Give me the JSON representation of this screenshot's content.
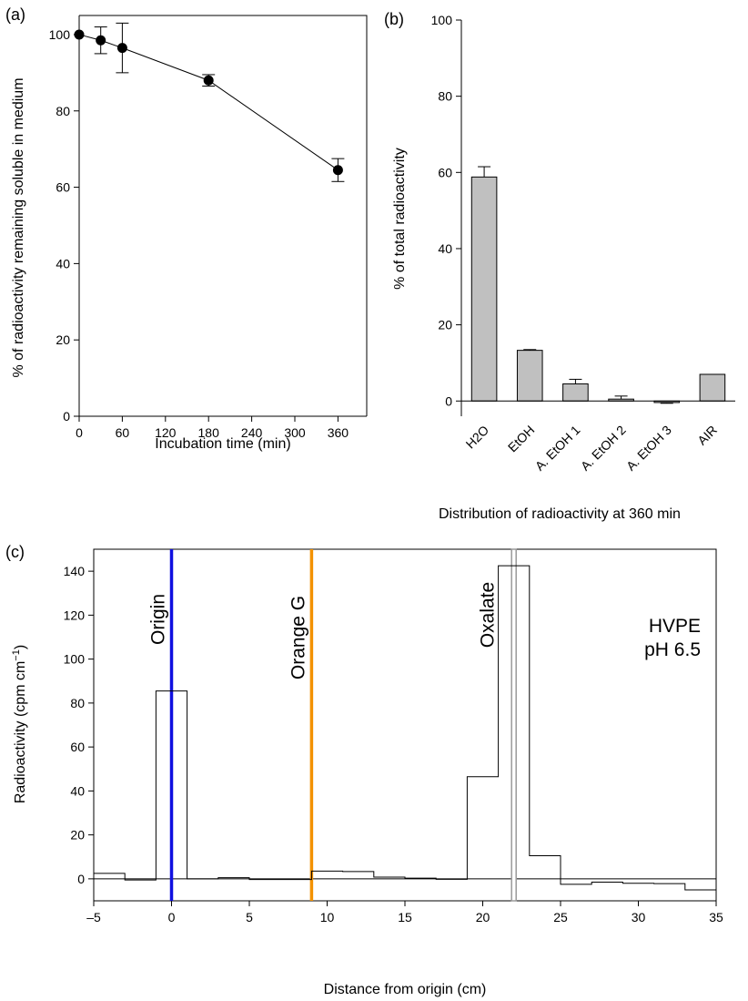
{
  "chart_data": [
    {
      "panel_label": "(a)",
      "type": "line",
      "xlabel": "Incubation time (min)",
      "ylabel": "% of radioactivity remaining soluble in medium",
      "xlim": [
        0,
        400
      ],
      "ylim": [
        0,
        105
      ],
      "xticks": [
        0,
        60,
        120,
        180,
        240,
        300,
        360
      ],
      "yticks": [
        0,
        20,
        40,
        60,
        80,
        100
      ],
      "x": [
        0,
        30,
        60,
        180,
        360
      ],
      "y": [
        100,
        98.5,
        96.5,
        88,
        64.5
      ],
      "errors": [
        0,
        3.5,
        6.5,
        1.5,
        3
      ],
      "marker": "filled-circle",
      "grid": false
    },
    {
      "panel_label": "(b)",
      "type": "bar",
      "xlabel": "Distribution of radioactivity at 360 min",
      "ylabel": "% of total radioactivity",
      "ylim": [
        -4,
        100
      ],
      "yticks": [
        0,
        20,
        40,
        60,
        80,
        100
      ],
      "categories": [
        "H2O",
        "EtOH",
        "A. EtOH 1",
        "A. EtOH 2",
        "A. EtOH 3",
        "AIR"
      ],
      "values": [
        58.8,
        13.3,
        4.5,
        0.5,
        -0.4,
        7.0
      ],
      "errors": [
        2.7,
        0.2,
        1.2,
        0.8,
        0.2,
        0
      ],
      "bar_color": "#c0c0c0",
      "grid": false
    },
    {
      "panel_label": "(c)",
      "type": "step",
      "xlabel": "Distance from origin (cm)",
      "ylabel": "Radioactivity (cpm cm",
      "ylabel_sup": "−1",
      "ylabel_end": ")",
      "xlim": [
        -5,
        35
      ],
      "ylim": [
        -10,
        150
      ],
      "xticks": [
        -5,
        0,
        5,
        10,
        15,
        20,
        25,
        30,
        35
      ],
      "xtick_labels": [
        "–5",
        "0",
        "5",
        "10",
        "15",
        "20",
        "25",
        "30",
        "35"
      ],
      "yticks": [
        0,
        20,
        40,
        60,
        80,
        100,
        120,
        140
      ],
      "segments": [
        {
          "x0": -5,
          "x1": -3,
          "y": 2.5
        },
        {
          "x0": -3,
          "x1": -1,
          "y": -0.5
        },
        {
          "x0": -1,
          "x1": 1,
          "y": 85.5
        },
        {
          "x0": 1,
          "x1": 3,
          "y": 0
        },
        {
          "x0": 3,
          "x1": 5,
          "y": 0.5
        },
        {
          "x0": 5,
          "x1": 7,
          "y": -0.3
        },
        {
          "x0": 7,
          "x1": 9,
          "y": -0.3
        },
        {
          "x0": 9,
          "x1": 11,
          "y": 3.5
        },
        {
          "x0": 11,
          "x1": 13,
          "y": 3.3
        },
        {
          "x0": 13,
          "x1": 15,
          "y": 0.8
        },
        {
          "x0": 15,
          "x1": 17,
          "y": 0.3
        },
        {
          "x0": 17,
          "x1": 19,
          "y": -0.2
        },
        {
          "x0": 19,
          "x1": 21,
          "y": 46.5
        },
        {
          "x0": 21,
          "x1": 23,
          "y": 142.5
        },
        {
          "x0": 23,
          "x1": 25,
          "y": 10.5
        },
        {
          "x0": 25,
          "x1": 27,
          "y": -2.5
        },
        {
          "x0": 27,
          "x1": 29,
          "y": -1.5
        },
        {
          "x0": 29,
          "x1": 31,
          "y": -2.0
        },
        {
          "x0": 31,
          "x1": 33,
          "y": -2.2
        },
        {
          "x0": 33,
          "x1": 35,
          "y": -5.0
        }
      ],
      "markers": [
        {
          "label": "Origin",
          "x": 0,
          "color": "#1010e0"
        },
        {
          "label": "Orange G",
          "x": 9,
          "color": "#f39200"
        },
        {
          "label": "Oxalate",
          "x": 22,
          "color": "#9a9a9a"
        }
      ],
      "annotation": [
        "HVPE",
        "pH 6.5"
      ],
      "grid": false
    }
  ]
}
